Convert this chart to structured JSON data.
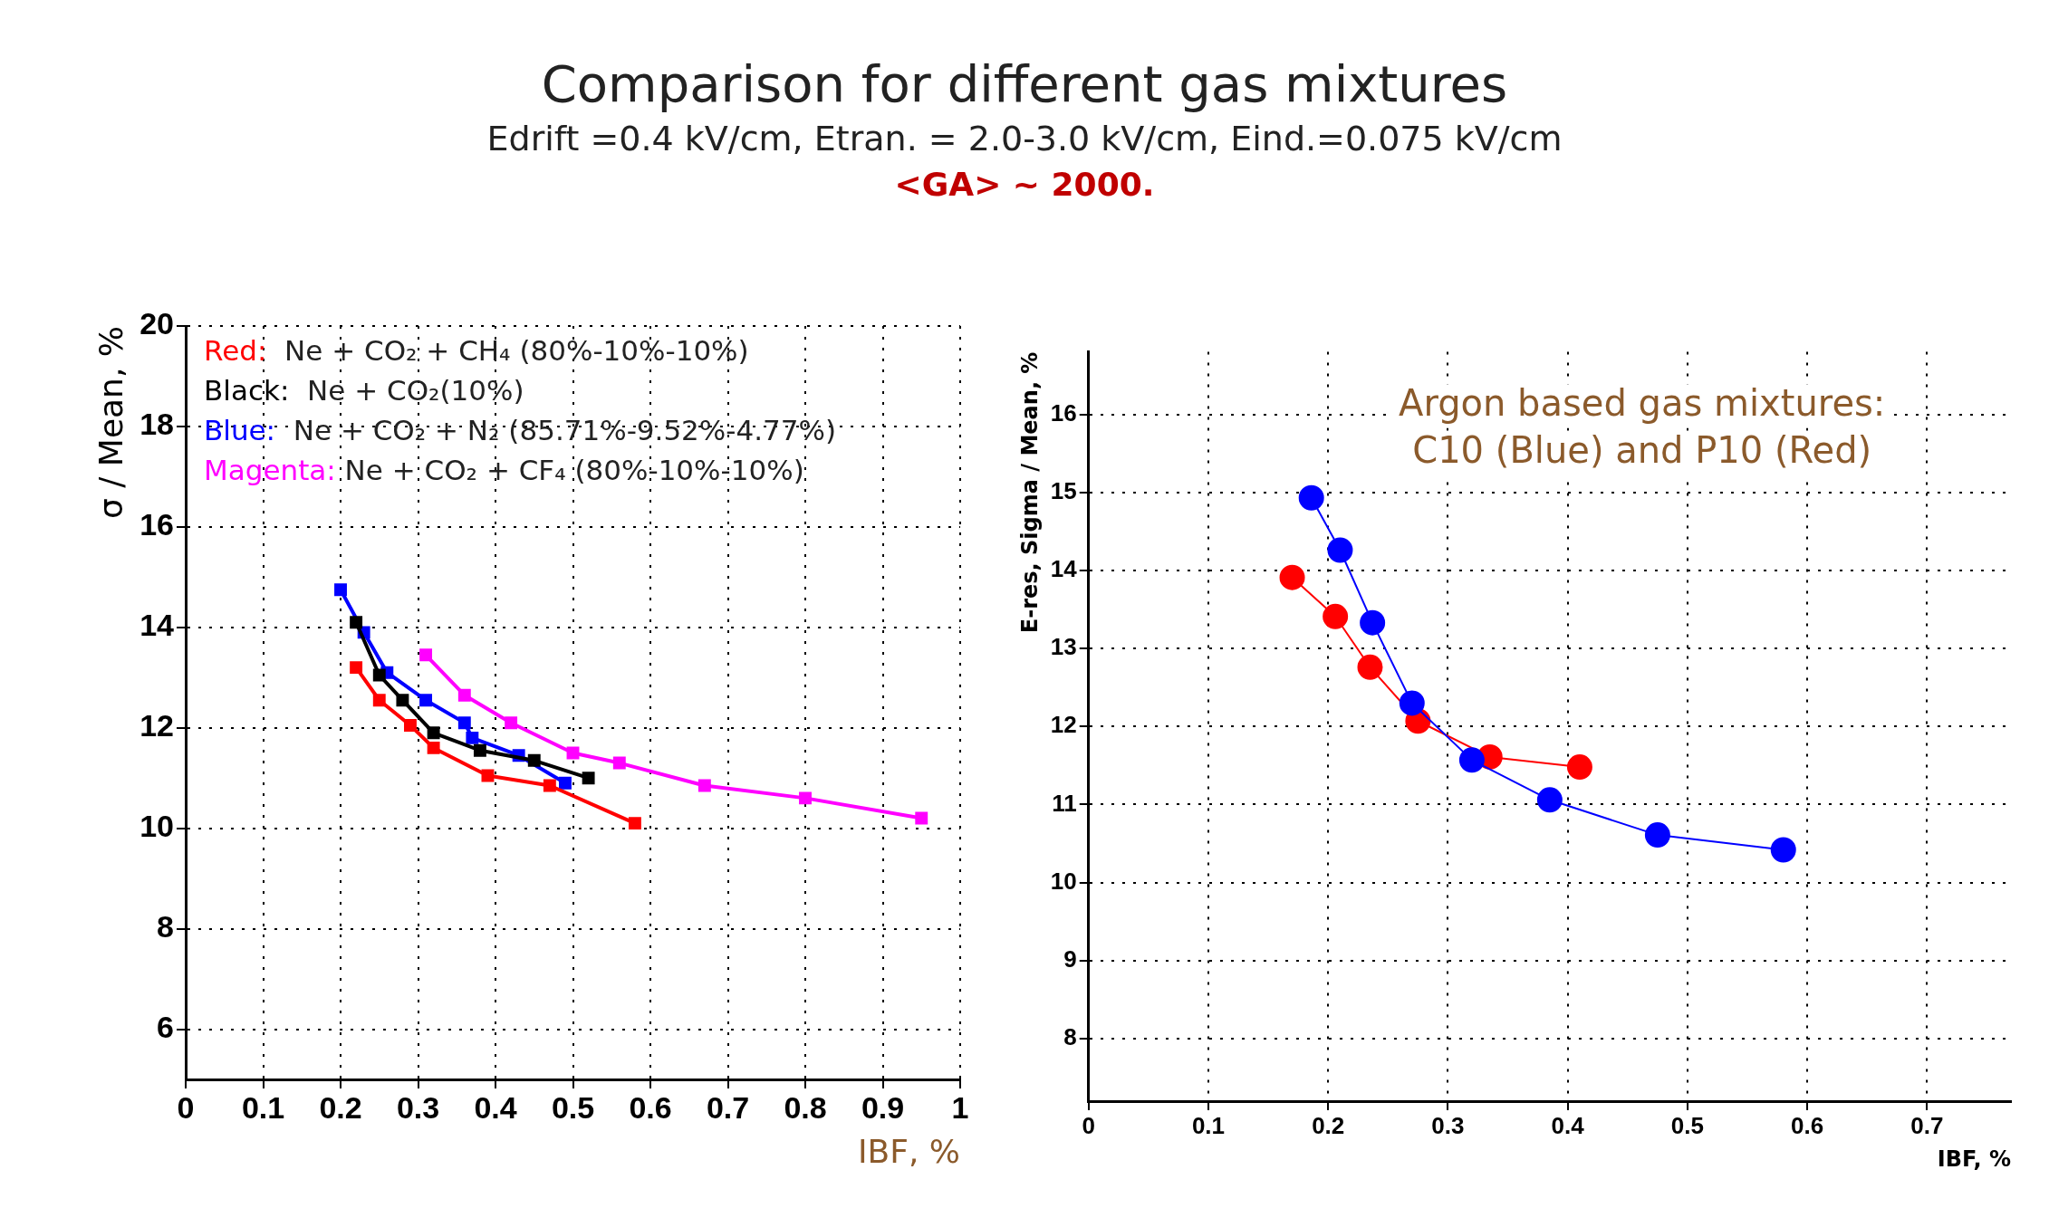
{
  "chart_data": [
    {
      "type": "line",
      "title": "Comparison for different gas mixtures",
      "subtitle": "Edrift =0.4 kV/cm,   Etran. = 2.0-3.0 kV/cm,  Eind.=0.075 kV/cm",
      "annotations": [
        "<GA> ~ 2000."
      ],
      "xlabel": "IBF, %",
      "ylabel": "σ / Mean, %",
      "xlim": [
        0,
        1
      ],
      "xticks": [
        0,
        0.1,
        0.2,
        0.3,
        0.4,
        0.5,
        0.6,
        0.7,
        0.8,
        0.9,
        1
      ],
      "ylim": [
        5,
        20
      ],
      "yticks": [
        6,
        8,
        10,
        12,
        14,
        16,
        18,
        20
      ],
      "grid": true,
      "legend": "top left",
      "marker": "square",
      "line_style": "solid",
      "series": [
        {
          "name": "Red:  Ne + CO₂ + CH₄ (80%-10%-10%)",
          "color": "#ff0000",
          "x": [
            0.22,
            0.25,
            0.29,
            0.32,
            0.39,
            0.47,
            0.58
          ],
          "values": [
            13.2,
            12.55,
            12.05,
            11.6,
            11.05,
            10.85,
            10.1
          ]
        },
        {
          "name": "Black:  Ne + CO₂(10%)",
          "color": "#000000",
          "x": [
            0.22,
            0.25,
            0.28,
            0.32,
            0.38,
            0.45,
            0.52
          ],
          "values": [
            14.1,
            13.05,
            12.55,
            11.9,
            11.55,
            11.35,
            11.0
          ]
        },
        {
          "name": "Blue:  Ne + CO₂ + N₂ (85.71%-9.52%-4.77%)",
          "color": "#0000ff",
          "x": [
            0.2,
            0.23,
            0.26,
            0.31,
            0.36,
            0.37,
            0.43,
            0.49
          ],
          "values": [
            14.75,
            13.9,
            13.1,
            12.55,
            12.1,
            11.8,
            11.45,
            10.9
          ]
        },
        {
          "name": "Magenta: Ne + CO₂ + CF₄ (80%-10%-10%)",
          "color": "#ff00ff",
          "x": [
            0.31,
            0.36,
            0.42,
            0.5,
            0.56,
            0.67,
            0.8,
            0.95
          ],
          "values": [
            13.45,
            12.65,
            12.1,
            11.5,
            11.3,
            10.85,
            10.6,
            10.2
          ]
        }
      ]
    },
    {
      "type": "line",
      "annotations": [
        "Argon based gas mixtures:",
        "C10 (Blue) and P10 (Red)"
      ],
      "xlabel": "IBF, %",
      "ylabel": "E-res, Sigma / Mean, %",
      "xlim": [
        0,
        0.77
      ],
      "xticks": [
        0,
        0.1,
        0.2,
        0.3,
        0.4,
        0.5,
        0.6,
        0.7
      ],
      "ylim": [
        7.2,
        16.8
      ],
      "yticks": [
        8,
        9,
        10,
        11,
        12,
        13,
        14,
        15,
        16
      ],
      "grid": true,
      "marker": "circle",
      "line_style": "solid",
      "series": [
        {
          "color": "#0000ff",
          "x": [
            0.186,
            0.21,
            0.237,
            0.27,
            0.32,
            0.385,
            0.475,
            0.58
          ],
          "values": [
            14.93,
            14.26,
            13.33,
            12.3,
            11.57,
            11.06,
            10.61,
            10.42
          ]
        },
        {
          "color": "#ff0000",
          "x": [
            0.17,
            0.206,
            0.235,
            0.275,
            0.335,
            0.41
          ],
          "values": [
            13.91,
            13.41,
            12.76,
            12.07,
            11.61,
            11.48
          ]
        }
      ]
    }
  ]
}
